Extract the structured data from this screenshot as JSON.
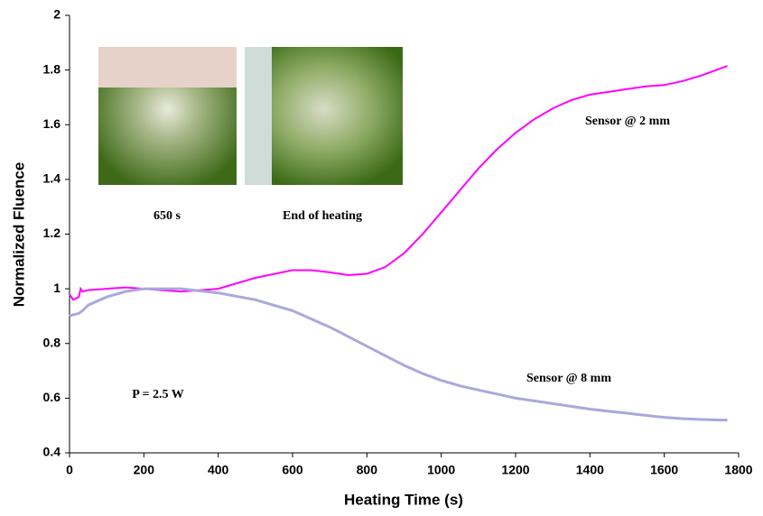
{
  "chart_data": {
    "type": "line",
    "x_label": "Heating Time (s)",
    "y_label": "Normalized Fluence",
    "x": [
      0,
      10,
      25,
      30,
      35,
      50,
      100,
      150,
      200,
      300,
      400,
      500,
      600,
      650,
      700,
      750,
      800,
      850,
      900,
      950,
      1000,
      1050,
      1100,
      1150,
      1200,
      1250,
      1300,
      1350,
      1400,
      1450,
      1500,
      1550,
      1600,
      1650,
      1700,
      1750,
      1770
    ],
    "series": [
      {
        "name": "Sensor @ 2 mm",
        "color": "#ff00ff",
        "values": [
          0.98,
          0.96,
          0.97,
          1.0,
          0.99,
          0.995,
          1.0,
          1.005,
          1.0,
          0.99,
          1.0,
          1.04,
          1.068,
          1.068,
          1.06,
          1.05,
          1.055,
          1.08,
          1.13,
          1.2,
          1.28,
          1.36,
          1.44,
          1.51,
          1.57,
          1.62,
          1.66,
          1.69,
          1.71,
          1.72,
          1.73,
          1.74,
          1.745,
          1.76,
          1.78,
          1.805,
          1.815
        ]
      },
      {
        "name": "Sensor @ 8 mm",
        "color": "#a9a9dc",
        "values": [
          0.9,
          0.905,
          0.91,
          0.915,
          0.92,
          0.94,
          0.97,
          0.99,
          1.0,
          1.0,
          0.985,
          0.96,
          0.92,
          0.89,
          0.86,
          0.825,
          0.79,
          0.755,
          0.72,
          0.69,
          0.665,
          0.645,
          0.63,
          0.615,
          0.6,
          0.59,
          0.58,
          0.57,
          0.56,
          0.552,
          0.545,
          0.537,
          0.53,
          0.525,
          0.522,
          0.52,
          0.52
        ]
      }
    ],
    "annotations": [
      "P = 2.5 W",
      "650 s",
      "End of heating"
    ],
    "xlim": [
      0,
      1800
    ],
    "xticks": [
      0,
      200,
      400,
      600,
      800,
      1000,
      1200,
      1400,
      1600,
      1800
    ],
    "ylim": [
      0.4,
      2
    ],
    "yticks": [
      0.4,
      0.6,
      0.8,
      1,
      1.2,
      1.4,
      1.6,
      1.8,
      2
    ],
    "grid": false
  }
}
